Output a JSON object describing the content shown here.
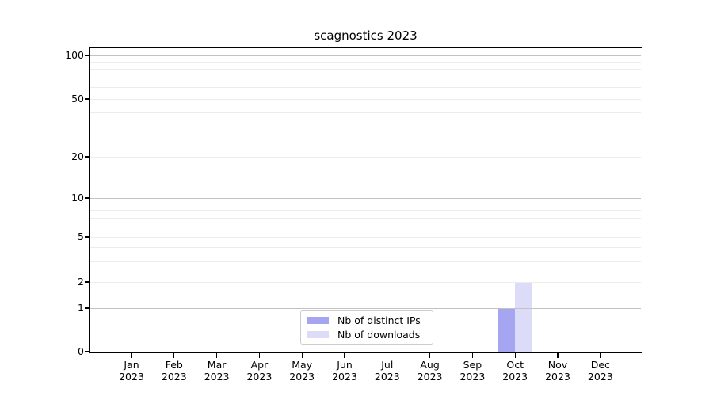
{
  "chart_data": {
    "type": "bar",
    "title": "scagnostics 2023",
    "categories": [
      "Jan 2023",
      "Feb 2023",
      "Mar 2023",
      "Apr 2023",
      "May 2023",
      "Jun 2023",
      "Jul 2023",
      "Aug 2023",
      "Sep 2023",
      "Oct 2023",
      "Nov 2023",
      "Dec 2023"
    ],
    "series": [
      {
        "name": "Nb of distinct IPs",
        "color": "#a5a5f2",
        "values": [
          0,
          0,
          0,
          0,
          0,
          0,
          0,
          0,
          0,
          1,
          0,
          0
        ]
      },
      {
        "name": "Nb of downloads",
        "color": "#dcdcf8",
        "values": [
          0,
          0,
          0,
          0,
          0,
          0,
          0,
          0,
          0,
          2,
          0,
          0
        ]
      }
    ],
    "y_axis": {
      "scale": "log-like (0,1,2,5,10,20,50,100)",
      "ticks": [
        0,
        1,
        2,
        5,
        10,
        20,
        50,
        100
      ],
      "ylim": [
        0,
        100
      ]
    },
    "xlabel": "",
    "ylabel": "",
    "grid": "horizontal, log minor gridlines",
    "legend_position": "bottom-center-left inside plot"
  },
  "colors": {
    "bar_distinct_ips": "#a5a5f2",
    "bar_downloads": "#dcdcf8",
    "gridline_major": "#c2c2c2",
    "gridline_minor": "#ececec",
    "axis": "#000000",
    "legend_border": "#cccccc",
    "background": "#ffffff"
  }
}
